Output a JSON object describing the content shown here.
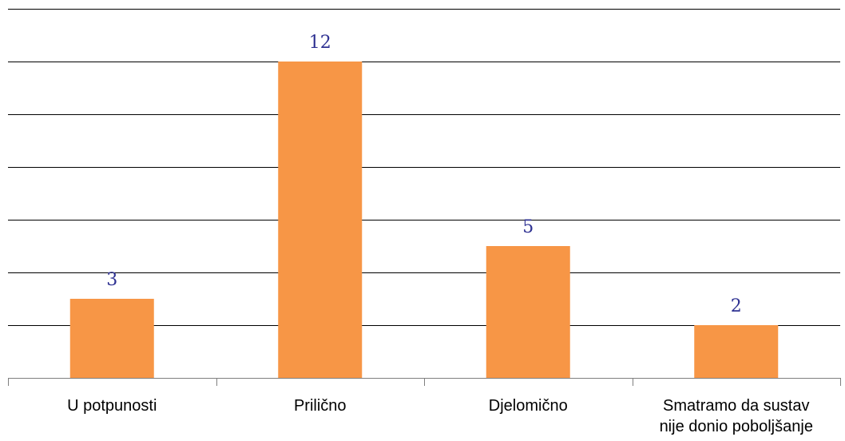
{
  "chart_data": {
    "type": "bar",
    "title": "",
    "xlabel": "",
    "ylabel": "",
    "categories": [
      [
        "U potpunosti"
      ],
      [
        "Prilično"
      ],
      [
        "Djelomično"
      ],
      [
        "Smatramo da sustav",
        "nije donio poboljšanje"
      ]
    ],
    "values": [
      3,
      12,
      5,
      2
    ],
    "ylim": [
      0,
      14
    ],
    "grid": true,
    "bar_color": "#f79646",
    "label_color": "#2e3192",
    "gridline_color": "#000000",
    "axis_color": "#7f7f7f"
  }
}
